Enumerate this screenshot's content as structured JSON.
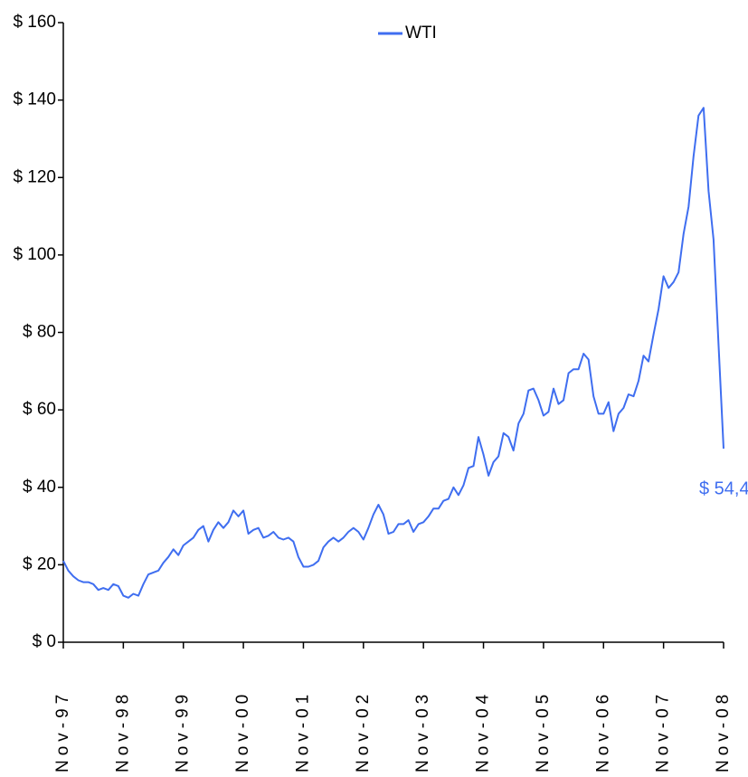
{
  "chart_data": {
    "type": "line",
    "x": [
      "Nov-97",
      "Dec-97",
      "Jan-98",
      "Feb-98",
      "Mar-98",
      "Apr-98",
      "May-98",
      "Jun-98",
      "Jul-98",
      "Aug-98",
      "Sep-98",
      "Oct-98",
      "Nov-98",
      "Dec-98",
      "Jan-99",
      "Feb-99",
      "Mar-99",
      "Apr-99",
      "May-99",
      "Jun-99",
      "Jul-99",
      "Aug-99",
      "Sep-99",
      "Oct-99",
      "Nov-99",
      "Dec-99",
      "Jan-00",
      "Feb-00",
      "Mar-00",
      "Apr-00",
      "May-00",
      "Jun-00",
      "Jul-00",
      "Aug-00",
      "Sep-00",
      "Oct-00",
      "Nov-00",
      "Dec-00",
      "Jan-01",
      "Feb-01",
      "Mar-01",
      "Apr-01",
      "May-01",
      "Jun-01",
      "Jul-01",
      "Aug-01",
      "Sep-01",
      "Oct-01",
      "Nov-01",
      "Dec-01",
      "Jan-02",
      "Feb-02",
      "Mar-02",
      "Apr-02",
      "May-02",
      "Jun-02",
      "Jul-02",
      "Aug-02",
      "Sep-02",
      "Oct-02",
      "Nov-02",
      "Dec-02",
      "Jan-03",
      "Feb-03",
      "Mar-03",
      "Apr-03",
      "May-03",
      "Jun-03",
      "Jul-03",
      "Aug-03",
      "Sep-03",
      "Oct-03",
      "Nov-03",
      "Dec-03",
      "Jan-04",
      "Feb-04",
      "Mar-04",
      "Apr-04",
      "May-04",
      "Jun-04",
      "Jul-04",
      "Aug-04",
      "Sep-04",
      "Oct-04",
      "Nov-04",
      "Dec-04",
      "Jan-05",
      "Feb-05",
      "Mar-05",
      "Apr-05",
      "May-05",
      "Jun-05",
      "Jul-05",
      "Aug-05",
      "Sep-05",
      "Oct-05",
      "Nov-05",
      "Dec-05",
      "Jan-06",
      "Feb-06",
      "Mar-06",
      "Apr-06",
      "May-06",
      "Jun-06",
      "Jul-06",
      "Aug-06",
      "Sep-06",
      "Oct-06",
      "Nov-06",
      "Dec-06",
      "Jan-07",
      "Feb-07",
      "Mar-07",
      "Apr-07",
      "May-07",
      "Jun-07",
      "Jul-07",
      "Aug-07",
      "Sep-07",
      "Oct-07",
      "Nov-07",
      "Dec-07",
      "Jan-08",
      "Feb-08",
      "Mar-08",
      "Apr-08",
      "May-08",
      "Jun-08",
      "Jul-08",
      "Aug-08",
      "Sep-08",
      "Oct-08",
      "Nov-08"
    ],
    "series": [
      {
        "name": "WTI",
        "color": "#3f6ef0",
        "values": [
          21,
          18.5,
          17,
          16,
          15.5,
          15.5,
          15,
          13.5,
          14,
          13.5,
          15,
          14.5,
          12,
          11.5,
          12.5,
          12,
          15,
          17.5,
          18,
          18.5,
          20.5,
          22,
          24,
          22.5,
          25,
          26,
          27,
          29,
          30,
          26,
          29,
          31,
          29.5,
          31,
          34,
          32.5,
          34,
          28,
          29,
          29.5,
          27,
          27.5,
          28.5,
          27,
          26.5,
          27,
          26,
          22,
          19.5,
          19.5,
          20,
          21,
          24.5,
          26,
          27,
          26,
          27,
          28.5,
          29.5,
          28.5,
          26.5,
          29.5,
          33,
          35.5,
          33,
          28,
          28.5,
          30.5,
          30.5,
          31.5,
          28.5,
          30.5,
          31,
          32.5,
          34.5,
          34.5,
          36.5,
          37,
          40,
          38,
          40.5,
          45,
          45.5,
          53,
          48.5,
          43,
          46.5,
          48,
          54,
          53,
          49.5,
          56.5,
          59,
          65,
          65.5,
          62.5,
          58.5,
          59.5,
          65.5,
          61.5,
          62.5,
          69.5,
          70.5,
          70.5,
          74.5,
          73,
          63.5,
          59,
          59,
          62,
          54.5,
          59,
          60.5,
          64,
          63.5,
          67.5,
          74,
          72.5,
          79.5,
          86,
          94.5,
          91.5,
          93,
          95.5,
          105.5,
          112.5,
          125.5,
          136,
          138,
          116.5,
          104,
          76.5,
          50
        ]
      }
    ],
    "xticks": [
      "Nov-97",
      "Nov-98",
      "Nov-99",
      "Nov-00",
      "Nov-01",
      "Nov-02",
      "Nov-03",
      "Nov-04",
      "Nov-05",
      "Nov-06",
      "Nov-07",
      "Nov-08"
    ],
    "ylim": [
      0,
      160
    ],
    "yticks": [
      {
        "value": 0,
        "label": "$ 0"
      },
      {
        "value": 20,
        "label": "$ 20"
      },
      {
        "value": 40,
        "label": "$ 40"
      },
      {
        "value": 60,
        "label": "$ 60"
      },
      {
        "value": 80,
        "label": "$ 80"
      },
      {
        "value": 100,
        "label": "$ 100"
      },
      {
        "value": 120,
        "label": "$ 120"
      },
      {
        "value": 140,
        "label": "$ 140"
      },
      {
        "value": 160,
        "label": "$ 160"
      }
    ],
    "annotation": "$ 54,4",
    "legend": "top",
    "grid": false
  }
}
